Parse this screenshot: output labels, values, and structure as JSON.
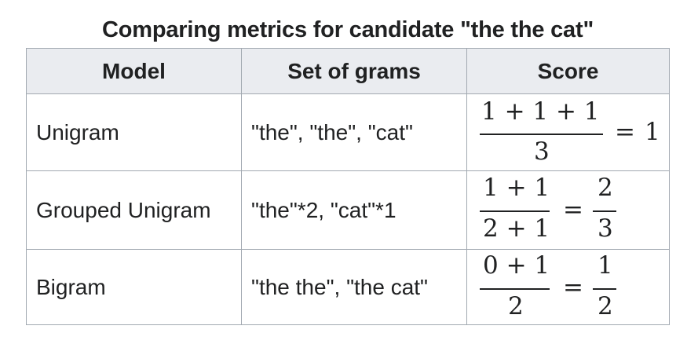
{
  "caption": "Comparing metrics for candidate \"the the cat\"",
  "headers": {
    "model": "Model",
    "grams": "Set of grams",
    "score": "Score"
  },
  "rows": [
    {
      "model": "Unigram",
      "grams": "\"the\", \"the\", \"cat\"",
      "score": {
        "numerator": "1 + 1 + 1",
        "denominator": "3",
        "equals": "=",
        "result": "1"
      }
    },
    {
      "model": "Grouped Unigram",
      "grams": "\"the\"*2, \"cat\"*1",
      "score": {
        "numerator": "1 + 1",
        "denominator": "2 + 1",
        "equals": "=",
        "result_numerator": "2",
        "result_denominator": "3"
      }
    },
    {
      "model": "Bigram",
      "grams": "\"the the\", \"the cat\"",
      "score": {
        "numerator": "0 + 1",
        "denominator": "2",
        "equals": "=",
        "result_numerator": "1",
        "result_denominator": "2"
      }
    }
  ]
}
